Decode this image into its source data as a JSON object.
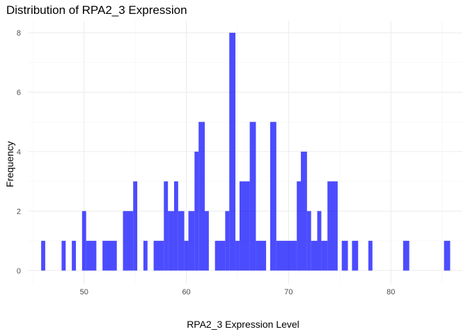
{
  "chart_data": {
    "type": "bar",
    "title": "Distribution of RPA2_3 Expression",
    "xlabel": "RPA2_3 Expression Level",
    "ylabel": "Frequency",
    "xlim": [
      44.5,
      87.0
    ],
    "ylim": [
      -0.45,
      8.4
    ],
    "x_ticks": [
      50,
      60,
      70,
      80
    ],
    "y_ticks": [
      0,
      2,
      4,
      6,
      8
    ],
    "grid": true,
    "legend": "none",
    "bar_color": "#0000ff",
    "bar_opacity": 0.7,
    "bins": [
      {
        "x0": 45.8,
        "x1": 46.2,
        "count": 1
      },
      {
        "x0": 47.8,
        "x1": 48.2,
        "count": 1
      },
      {
        "x0": 48.8,
        "x1": 49.2,
        "count": 1
      },
      {
        "x0": 49.8,
        "x1": 50.2,
        "count": 2
      },
      {
        "x0": 50.2,
        "x1": 51.2,
        "count": 1
      },
      {
        "x0": 51.8,
        "x1": 53.2,
        "count": 1
      },
      {
        "x0": 53.8,
        "x1": 54.8,
        "count": 2
      },
      {
        "x0": 54.8,
        "x1": 55.2,
        "count": 3
      },
      {
        "x0": 55.8,
        "x1": 56.2,
        "count": 1
      },
      {
        "x0": 56.8,
        "x1": 57.8,
        "count": 1
      },
      {
        "x0": 57.8,
        "x1": 58.2,
        "count": 3
      },
      {
        "x0": 58.2,
        "x1": 58.8,
        "count": 2
      },
      {
        "x0": 58.8,
        "x1": 59.2,
        "count": 3
      },
      {
        "x0": 59.2,
        "x1": 59.8,
        "count": 2
      },
      {
        "x0": 59.8,
        "x1": 60.2,
        "count": 1
      },
      {
        "x0": 60.2,
        "x1": 60.8,
        "count": 2
      },
      {
        "x0": 60.8,
        "x1": 61.2,
        "count": 4
      },
      {
        "x0": 61.2,
        "x1": 61.8,
        "count": 5
      },
      {
        "x0": 61.8,
        "x1": 62.2,
        "count": 2
      },
      {
        "x0": 62.8,
        "x1": 63.8,
        "count": 1
      },
      {
        "x0": 63.8,
        "x1": 64.2,
        "count": 2
      },
      {
        "x0": 64.2,
        "x1": 64.8,
        "count": 8
      },
      {
        "x0": 64.8,
        "x1": 65.2,
        "count": 1
      },
      {
        "x0": 65.2,
        "x1": 66.2,
        "count": 3
      },
      {
        "x0": 66.2,
        "x1": 66.8,
        "count": 5
      },
      {
        "x0": 66.8,
        "x1": 67.8,
        "count": 1
      },
      {
        "x0": 68.2,
        "x1": 68.8,
        "count": 5
      },
      {
        "x0": 68.8,
        "x1": 70.8,
        "count": 1
      },
      {
        "x0": 70.8,
        "x1": 71.2,
        "count": 3
      },
      {
        "x0": 71.2,
        "x1": 71.8,
        "count": 4
      },
      {
        "x0": 71.8,
        "x1": 72.2,
        "count": 2
      },
      {
        "x0": 72.2,
        "x1": 72.8,
        "count": 1
      },
      {
        "x0": 72.8,
        "x1": 73.2,
        "count": 2
      },
      {
        "x0": 73.2,
        "x1": 73.8,
        "count": 1
      },
      {
        "x0": 73.8,
        "x1": 74.8,
        "count": 3
      },
      {
        "x0": 75.2,
        "x1": 75.8,
        "count": 1
      },
      {
        "x0": 76.2,
        "x1": 76.8,
        "count": 1
      },
      {
        "x0": 77.8,
        "x1": 78.2,
        "count": 1
      },
      {
        "x0": 81.2,
        "x1": 81.8,
        "count": 1
      },
      {
        "x0": 85.2,
        "x1": 85.8,
        "count": 1
      }
    ]
  }
}
